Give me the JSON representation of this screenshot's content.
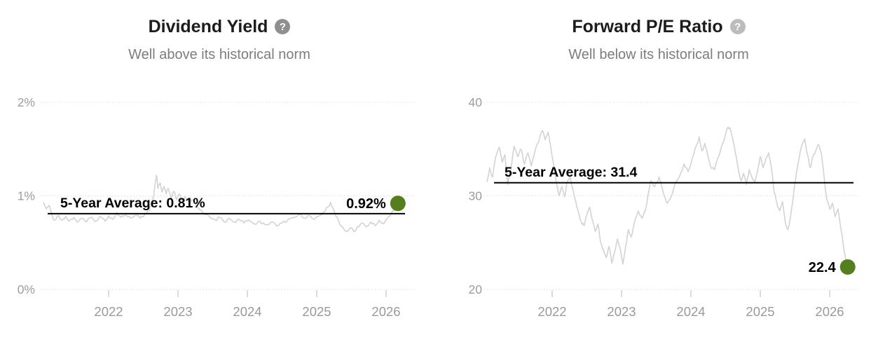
{
  "page": {
    "background": "#ffffff"
  },
  "colors": {
    "series_line": "#d3d3d3",
    "average_line": "#000000",
    "current_dot_green": "#557f1e",
    "gridline": "#dedede",
    "tick_mark": "#cfcfcf",
    "axis_label": "#a09c9c",
    "year_label": "#9a9a9a",
    "title_text": "#1c1c1c",
    "subtitle_text": "#7d7d7d"
  },
  "chart_data": [
    {
      "type": "line",
      "slug": "dividend-yield",
      "title": "Dividend Yield",
      "subtitle": "Well above its historical norm",
      "help_glyph": "?",
      "help_icon_color": "#8f8f8f",
      "average_value": 0.81,
      "average_label": "5-Year Average: 0.81%",
      "current_value": 0.92,
      "current_label": "0.92%",
      "ylim": [
        0,
        2
      ],
      "ytick_values": [
        2,
        1,
        0
      ],
      "ytick_labels": [
        "2%",
        "1%",
        "0%"
      ],
      "xtick_values": [
        2022,
        2023,
        2024,
        2025,
        2026
      ],
      "xtick_labels": [
        "2022",
        "2023",
        "2024",
        "2025",
        "2026"
      ],
      "xlim": [
        2021.06,
        2026.3
      ],
      "grid": "dotted-horizontal",
      "legend": "none",
      "series": [
        {
          "name": "Dividend Yield (%)",
          "points": [
            [
              2021.06,
              0.93
            ],
            [
              2021.1,
              0.86
            ],
            [
              2021.14,
              0.9
            ],
            [
              2021.18,
              0.8
            ],
            [
              2021.22,
              0.74
            ],
            [
              2021.28,
              0.79
            ],
            [
              2021.33,
              0.74
            ],
            [
              2021.38,
              0.78
            ],
            [
              2021.43,
              0.73
            ],
            [
              2021.5,
              0.77
            ],
            [
              2021.55,
              0.72
            ],
            [
              2021.62,
              0.76
            ],
            [
              2021.68,
              0.72
            ],
            [
              2021.75,
              0.77
            ],
            [
              2021.82,
              0.73
            ],
            [
              2021.88,
              0.78
            ],
            [
              2021.95,
              0.73
            ],
            [
              2022.0,
              0.79
            ],
            [
              2022.06,
              0.75
            ],
            [
              2022.12,
              0.82
            ],
            [
              2022.18,
              0.77
            ],
            [
              2022.25,
              0.8
            ],
            [
              2022.32,
              0.76
            ],
            [
              2022.4,
              0.79
            ],
            [
              2022.46,
              0.76
            ],
            [
              2022.52,
              0.8
            ],
            [
              2022.58,
              0.84
            ],
            [
              2022.62,
              0.92
            ],
            [
              2022.65,
              1.0
            ],
            [
              2022.67,
              1.12
            ],
            [
              2022.69,
              1.22
            ],
            [
              2022.71,
              1.08
            ],
            [
              2022.74,
              1.14
            ],
            [
              2022.77,
              1.04
            ],
            [
              2022.8,
              1.1
            ],
            [
              2022.83,
              1.02
            ],
            [
              2022.86,
              1.08
            ],
            [
              2022.9,
              0.98
            ],
            [
              2022.94,
              1.05
            ],
            [
              2022.98,
              0.96
            ],
            [
              2023.02,
              1.02
            ],
            [
              2023.06,
              0.94
            ],
            [
              2023.1,
              0.99
            ],
            [
              2023.16,
              0.93
            ],
            [
              2023.2,
              0.96
            ],
            [
              2023.27,
              0.89
            ],
            [
              2023.33,
              0.85
            ],
            [
              2023.4,
              0.8
            ],
            [
              2023.47,
              0.76
            ],
            [
              2023.54,
              0.74
            ],
            [
              2023.6,
              0.77
            ],
            [
              2023.67,
              0.72
            ],
            [
              2023.74,
              0.76
            ],
            [
              2023.81,
              0.72
            ],
            [
              2023.88,
              0.75
            ],
            [
              2023.95,
              0.71
            ],
            [
              2024.02,
              0.74
            ],
            [
              2024.1,
              0.7
            ],
            [
              2024.18,
              0.73
            ],
            [
              2024.26,
              0.69
            ],
            [
              2024.34,
              0.72
            ],
            [
              2024.42,
              0.68
            ],
            [
              2024.5,
              0.71
            ],
            [
              2024.58,
              0.74
            ],
            [
              2024.66,
              0.77
            ],
            [
              2024.74,
              0.8
            ],
            [
              2024.82,
              0.76
            ],
            [
              2024.9,
              0.79
            ],
            [
              2024.97,
              0.75
            ],
            [
              2025.04,
              0.79
            ],
            [
              2025.1,
              0.83
            ],
            [
              2025.16,
              0.88
            ],
            [
              2025.2,
              0.93
            ],
            [
              2025.24,
              0.86
            ],
            [
              2025.28,
              0.78
            ],
            [
              2025.33,
              0.7
            ],
            [
              2025.38,
              0.66
            ],
            [
              2025.44,
              0.62
            ],
            [
              2025.5,
              0.66
            ],
            [
              2025.55,
              0.62
            ],
            [
              2025.6,
              0.67
            ],
            [
              2025.66,
              0.71
            ],
            [
              2025.72,
              0.67
            ],
            [
              2025.78,
              0.72
            ],
            [
              2025.84,
              0.68
            ],
            [
              2025.9,
              0.74
            ],
            [
              2025.96,
              0.7
            ],
            [
              2026.02,
              0.76
            ],
            [
              2026.08,
              0.82
            ],
            [
              2026.13,
              0.87
            ],
            [
              2026.17,
              0.92
            ]
          ]
        }
      ]
    },
    {
      "type": "line",
      "slug": "forward-pe-ratio",
      "title": "Forward P/E Ratio",
      "subtitle": "Well below its historical norm",
      "help_glyph": "?",
      "help_icon_color": "#bcbcbc",
      "average_value": 31.4,
      "average_label": "5-Year Average: 31.4",
      "current_value": 22.4,
      "current_label": "22.4",
      "ylim": [
        20,
        40
      ],
      "ytick_values": [
        40,
        30,
        20
      ],
      "ytick_labels": [
        "40",
        "30",
        "20"
      ],
      "xtick_values": [
        2022,
        2023,
        2024,
        2025,
        2026
      ],
      "xtick_labels": [
        "2022",
        "2023",
        "2024",
        "2025",
        "2026"
      ],
      "xlim": [
        2021.06,
        2026.35
      ],
      "grid": "dotted-horizontal",
      "legend": "none",
      "series": [
        {
          "name": "Forward P/E Ratio",
          "points": [
            [
              2021.06,
              31.5
            ],
            [
              2021.1,
              33.0
            ],
            [
              2021.14,
              32.0
            ],
            [
              2021.18,
              34.0
            ],
            [
              2021.24,
              35.2
            ],
            [
              2021.28,
              33.6
            ],
            [
              2021.32,
              34.4
            ],
            [
              2021.36,
              31.2
            ],
            [
              2021.4,
              32.6
            ],
            [
              2021.45,
              35.3
            ],
            [
              2021.5,
              34.2
            ],
            [
              2021.55,
              35.0
            ],
            [
              2021.6,
              33.4
            ],
            [
              2021.65,
              34.6
            ],
            [
              2021.7,
              33.2
            ],
            [
              2021.76,
              35.0
            ],
            [
              2021.82,
              36.2
            ],
            [
              2021.86,
              37.0
            ],
            [
              2021.9,
              36.0
            ],
            [
              2021.94,
              36.8
            ],
            [
              2021.98,
              35.2
            ],
            [
              2022.02,
              33.4
            ],
            [
              2022.06,
              31.4
            ],
            [
              2022.1,
              30.0
            ],
            [
              2022.14,
              31.0
            ],
            [
              2022.18,
              29.9
            ],
            [
              2022.22,
              31.6
            ],
            [
              2022.26,
              32.0
            ],
            [
              2022.3,
              30.6
            ],
            [
              2022.34,
              29.4
            ],
            [
              2022.38,
              28.2
            ],
            [
              2022.42,
              27.2
            ],
            [
              2022.46,
              26.8
            ],
            [
              2022.5,
              28.0
            ],
            [
              2022.54,
              28.8
            ],
            [
              2022.58,
              27.4
            ],
            [
              2022.62,
              26.2
            ],
            [
              2022.66,
              27.0
            ],
            [
              2022.7,
              25.0
            ],
            [
              2022.74,
              24.2
            ],
            [
              2022.78,
              23.4
            ],
            [
              2022.82,
              24.6
            ],
            [
              2022.86,
              22.8
            ],
            [
              2022.9,
              24.0
            ],
            [
              2022.94,
              25.4
            ],
            [
              2022.98,
              24.4
            ],
            [
              2023.02,
              22.7
            ],
            [
              2023.06,
              24.6
            ],
            [
              2023.1,
              26.4
            ],
            [
              2023.14,
              25.6
            ],
            [
              2023.18,
              27.0
            ],
            [
              2023.24,
              28.4
            ],
            [
              2023.3,
              27.6
            ],
            [
              2023.36,
              29.0
            ],
            [
              2023.42,
              31.6
            ],
            [
              2023.48,
              31.0
            ],
            [
              2023.54,
              32.0
            ],
            [
              2023.6,
              30.4
            ],
            [
              2023.66,
              29.2
            ],
            [
              2023.72,
              30.0
            ],
            [
              2023.78,
              31.4
            ],
            [
              2023.84,
              32.2
            ],
            [
              2023.9,
              33.4
            ],
            [
              2023.96,
              32.6
            ],
            [
              2024.02,
              34.0
            ],
            [
              2024.08,
              35.4
            ],
            [
              2024.12,
              36.3
            ],
            [
              2024.16,
              34.8
            ],
            [
              2024.2,
              35.6
            ],
            [
              2024.24,
              34.4
            ],
            [
              2024.28,
              33.2
            ],
            [
              2024.34,
              32.8
            ],
            [
              2024.4,
              34.2
            ],
            [
              2024.46,
              35.6
            ],
            [
              2024.52,
              37.2
            ],
            [
              2024.56,
              37.3
            ],
            [
              2024.6,
              36.2
            ],
            [
              2024.64,
              34.6
            ],
            [
              2024.68,
              33.0
            ],
            [
              2024.72,
              31.6
            ],
            [
              2024.76,
              32.4
            ],
            [
              2024.8,
              31.2
            ],
            [
              2024.84,
              32.8
            ],
            [
              2024.88,
              32.0
            ],
            [
              2024.92,
              31.4
            ],
            [
              2024.96,
              32.6
            ],
            [
              2025.0,
              34.2
            ],
            [
              2025.04,
              33.0
            ],
            [
              2025.08,
              34.0
            ],
            [
              2025.12,
              34.6
            ],
            [
              2025.16,
              33.0
            ],
            [
              2025.2,
              30.4
            ],
            [
              2025.24,
              29.2
            ],
            [
              2025.28,
              28.4
            ],
            [
              2025.32,
              29.4
            ],
            [
              2025.36,
              27.2
            ],
            [
              2025.4,
              26.4
            ],
            [
              2025.44,
              28.0
            ],
            [
              2025.48,
              30.2
            ],
            [
              2025.52,
              32.4
            ],
            [
              2025.56,
              34.0
            ],
            [
              2025.6,
              35.4
            ],
            [
              2025.64,
              36.1
            ],
            [
              2025.68,
              34.4
            ],
            [
              2025.72,
              33.0
            ],
            [
              2025.76,
              34.2
            ],
            [
              2025.8,
              34.8
            ],
            [
              2025.84,
              35.5
            ],
            [
              2025.88,
              34.6
            ],
            [
              2025.92,
              32.0
            ],
            [
              2025.96,
              29.6
            ],
            [
              2026.0,
              28.6
            ],
            [
              2026.04,
              29.2
            ],
            [
              2026.08,
              27.8
            ],
            [
              2026.12,
              28.6
            ],
            [
              2026.16,
              26.6
            ],
            [
              2026.2,
              24.5
            ],
            [
              2026.26,
              22.4
            ]
          ]
        }
      ]
    }
  ]
}
